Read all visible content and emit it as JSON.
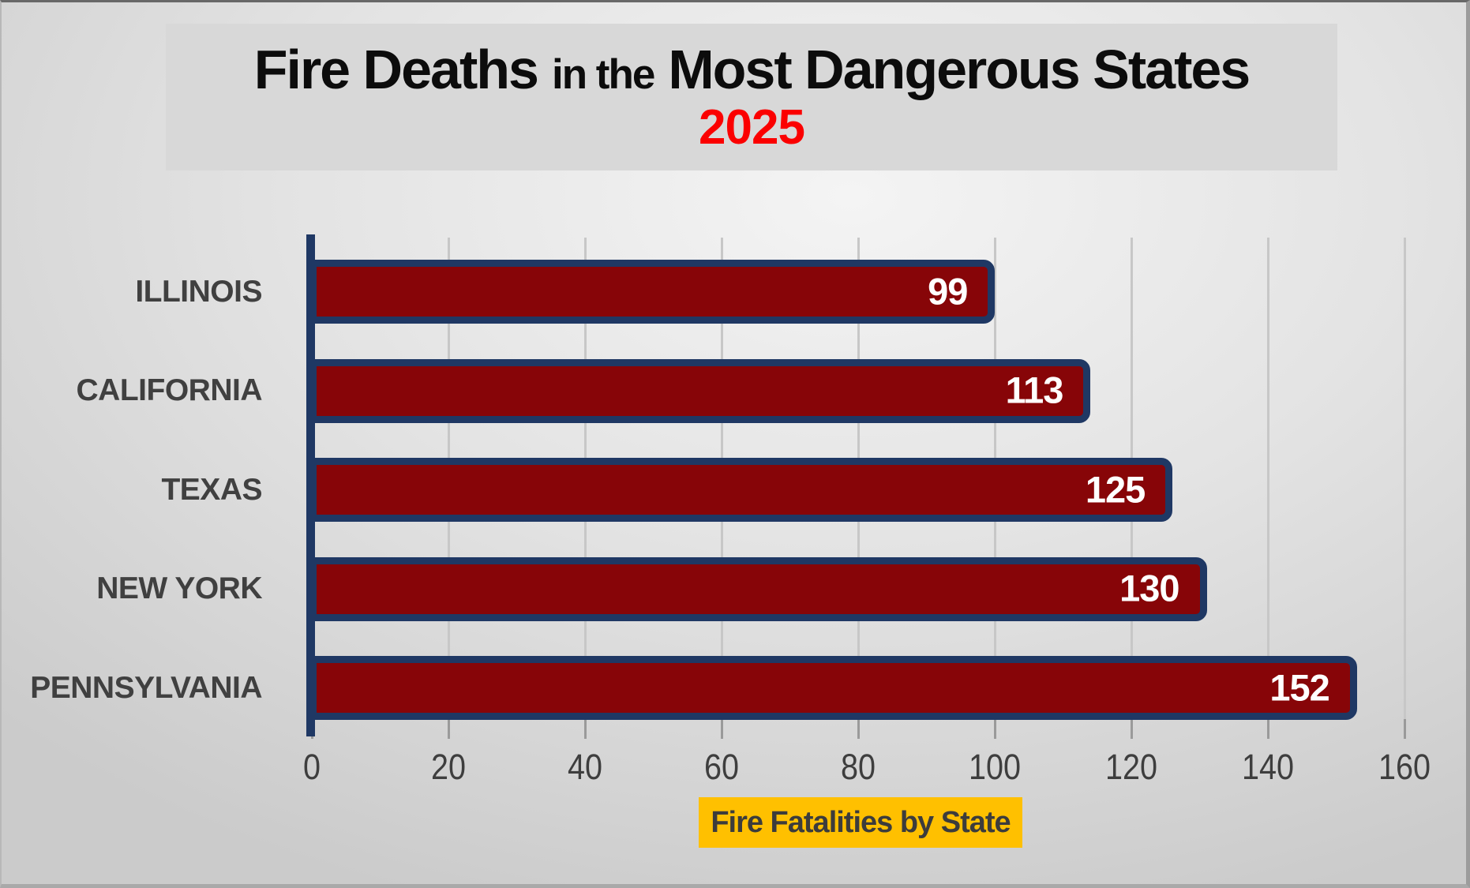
{
  "title": {
    "part1": "Fire Deaths",
    "part2": "in the",
    "part3": "Most Dangerous States",
    "year": "2025"
  },
  "chart_data": {
    "type": "bar",
    "orientation": "horizontal",
    "title": "Fire Deaths in the Most Dangerous States",
    "subtitle": "2025",
    "categories": [
      "ILLINOIS",
      "CALIFORNIA",
      "TEXAS",
      "NEW YORK",
      "PENNSYLVANIA"
    ],
    "values": [
      99,
      113,
      125,
      130,
      152
    ],
    "xlim": [
      0,
      160
    ],
    "x_ticks": [
      0,
      20,
      40,
      60,
      80,
      100,
      120,
      140,
      160
    ],
    "grid": true,
    "legend": false,
    "data_labels": "inside-end",
    "caption": "Fire Fatalities by State",
    "xlabel": "Fire Fatalities by State",
    "ylabel": ""
  },
  "colors": {
    "title_block_bg": "#d8d8d8",
    "title_text": "#0c0c0c",
    "year_text": "#fb0000",
    "bar_fill": "#870508",
    "bar_border": "#1f3864",
    "axis": "#1f3864",
    "gridline": "#c7c7c7",
    "tick": "#9a9a9a",
    "tick_label": "#3e3e3e",
    "category_label": "#404040",
    "value_label": "#ffffff",
    "caption_bg": "#ffc000",
    "caption_text": "#3c3c3c"
  }
}
